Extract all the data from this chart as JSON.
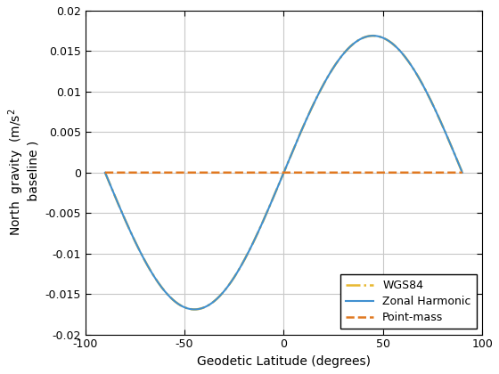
{
  "title": "",
  "xlabel": "Geodetic Latitude (degrees)",
  "xlim": [
    -100,
    100
  ],
  "ylim": [
    -0.02,
    0.02
  ],
  "xticks": [
    -100,
    -50,
    0,
    50,
    100
  ],
  "yticks": [
    -0.02,
    -0.015,
    -0.01,
    -0.005,
    0,
    0.005,
    0.01,
    0.015,
    0.02
  ],
  "zonal_color": "#4090d0",
  "pointmass_color": "#e07820",
  "wgs84_color": "#e8b830",
  "background_color": "#ffffff",
  "grid_color": "#c8c8c8",
  "legend_labels": [
    "Zonal Harmonic",
    "Point-mass",
    "WGS84"
  ],
  "amplitude": 0.0169,
  "fig_width": 5.6,
  "fig_height": 4.2,
  "dpi": 100
}
